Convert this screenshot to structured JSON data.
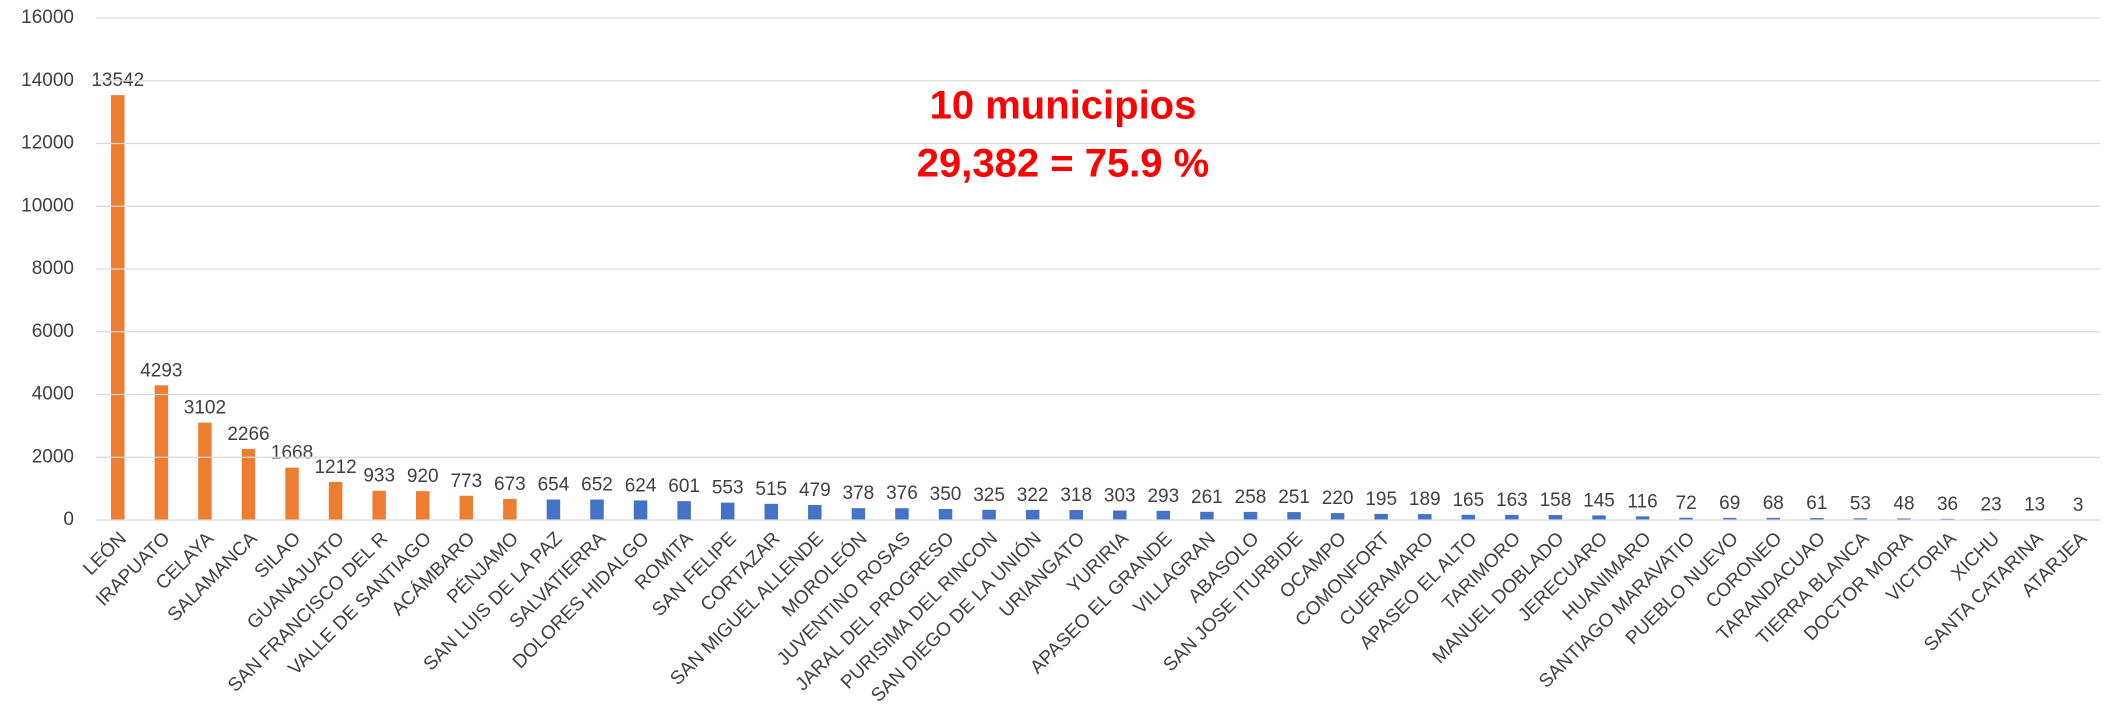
{
  "chart_data": {
    "type": "bar",
    "categories": [
      "LEÓN",
      "IRAPUATO",
      "CELAYA",
      "SALAMANCA",
      "SILAO",
      "GUANAJUATO",
      "SAN FRANCISCO DEL R",
      "VALLE DE SANTIAGO",
      "ACÁMBARO",
      "PÉNJAMO",
      "SAN LUIS DE LA PAZ",
      "SALVATIERRA",
      "DOLORES HIDALGO",
      "ROMITA",
      "SAN FELIPE",
      "CORTAZAR",
      "SAN MIGUEL ALLENDE",
      "MOROLEÓN",
      "JUVENTINO ROSAS",
      "JARAL DEL PROGRESO",
      "PURISIMA DEL RINCON",
      "SAN DIEGO DE LA UNIÓN",
      "URIANGATO",
      "YURIRIA",
      "APASEO EL GRANDE",
      "VILLAGRAN",
      "ABASOLO",
      "SAN JOSE ITURBIDE",
      "OCAMPO",
      "COMONFORT",
      "CUERAMARO",
      "APASEO EL ALTO",
      "TARIMORO",
      "MANUEL DOBLADO",
      "JERECUARO",
      "HUANIMARO",
      "SANTIAGO MARAVATIO",
      "PUEBLO NUEVO",
      "CORONEO",
      "TARANDACUAO",
      "TIERRA BLANCA",
      "DOCTOR MORA",
      "VICTORIA",
      "XICHU",
      "SANTA CATARINA",
      "ATARJEA"
    ],
    "values": [
      13542,
      4293,
      3102,
      2266,
      1668,
      1212,
      933,
      920,
      773,
      673,
      654,
      652,
      624,
      601,
      553,
      515,
      479,
      378,
      376,
      350,
      325,
      322,
      318,
      303,
      293,
      261,
      258,
      251,
      220,
      195,
      189,
      165,
      163,
      158,
      145,
      116,
      72,
      69,
      68,
      61,
      53,
      48,
      36,
      23,
      13,
      3
    ],
    "colors": [
      "#ed7d31",
      "#ed7d31",
      "#ed7d31",
      "#ed7d31",
      "#ed7d31",
      "#ed7d31",
      "#ed7d31",
      "#ed7d31",
      "#ed7d31",
      "#ed7d31",
      "#4472c4",
      "#4472c4",
      "#4472c4",
      "#4472c4",
      "#4472c4",
      "#4472c4",
      "#4472c4",
      "#4472c4",
      "#4472c4",
      "#4472c4",
      "#4472c4",
      "#4472c4",
      "#4472c4",
      "#4472c4",
      "#4472c4",
      "#4472c4",
      "#4472c4",
      "#4472c4",
      "#4472c4",
      "#4472c4",
      "#4472c4",
      "#4472c4",
      "#4472c4",
      "#4472c4",
      "#4472c4",
      "#4472c4",
      "#4472c4",
      "#4472c4",
      "#4472c4",
      "#4472c4",
      "#4472c4",
      "#4472c4",
      "#4472c4",
      "#4472c4",
      "#4472c4",
      "#4472c4"
    ],
    "ylim": [
      0,
      16000
    ],
    "yticks": [
      0,
      2000,
      4000,
      6000,
      8000,
      10000,
      12000,
      14000,
      16000
    ],
    "grid": true,
    "annotations": [
      "10 municipios",
      "29,382 = 75.9 %"
    ]
  }
}
